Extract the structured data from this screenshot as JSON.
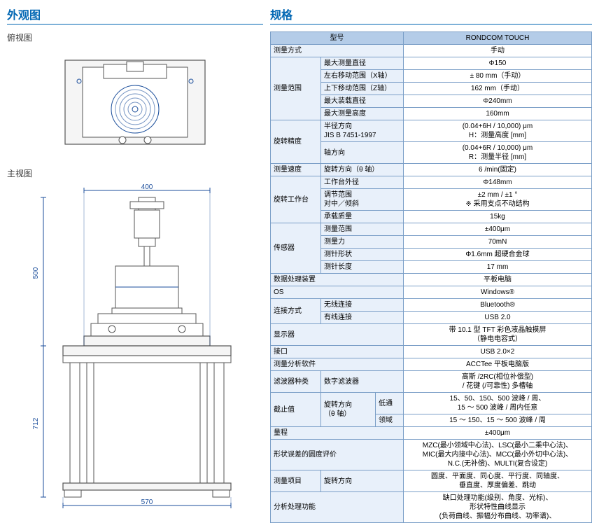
{
  "left": {
    "title": "外观图",
    "top_label": "俯视图",
    "front_label": "主视图",
    "dims": {
      "top_width": "400",
      "front_height_upper": "500",
      "front_height_lower": "712",
      "front_width": "570"
    }
  },
  "right": {
    "title": "规格",
    "header_model": "型号",
    "header_value": "RONDCOM TOUCH",
    "rows": [
      {
        "c1": "测量方式",
        "c2": "",
        "c3": "",
        "v": "手动",
        "rs1": 1,
        "cs1": 3
      },
      {
        "c1": "测量范围",
        "c2": "最大测量直径",
        "c3": "",
        "v": "Φ150",
        "rs1": 5,
        "cs2": 2
      },
      {
        "c1": "",
        "c2": "左右移动范围（X轴）",
        "c3": "",
        "v": "± 80 mm（手动）",
        "cs2": 2
      },
      {
        "c1": "",
        "c2": "上下移动范围（Z轴）",
        "c3": "",
        "v": "162 mm（手动）",
        "cs2": 2
      },
      {
        "c1": "",
        "c2": "最大装载直径",
        "c3": "",
        "v": "Φ240mm",
        "cs2": 2
      },
      {
        "c1": "",
        "c2": "最大测量高度",
        "c3": "",
        "v": "160mm",
        "cs2": 2
      },
      {
        "c1": "旋转精度",
        "c2": "半径方向\nJIS B 7451-1997",
        "c3": "",
        "v": "(0.04+6H / 10,000) μm\nH：测量高度 [mm]",
        "rs1": 2,
        "cs2": 2
      },
      {
        "c1": "",
        "c2": "轴方向",
        "c3": "",
        "v": "(0.04+6R / 10,000) μm\nR：测量半径 [mm]",
        "cs2": 2
      },
      {
        "c1": "测量速度",
        "c2": "旋转方向（θ 轴）",
        "c3": "",
        "v": "6 /min(固定)",
        "rs1": 1,
        "cs2": 2
      },
      {
        "c1": "旋转工作台",
        "c2": "工作台外径",
        "c3": "",
        "v": "Φ148mm",
        "rs1": 3,
        "cs2": 2
      },
      {
        "c1": "",
        "c2": "调节范围\n对中／倾斜",
        "c3": "",
        "v": "±2 mm / ±1 °\n※ 采用支点不动结构",
        "cs2": 2
      },
      {
        "c1": "",
        "c2": "承载质量",
        "c3": "",
        "v": "15kg",
        "cs2": 2
      },
      {
        "c1": "传感器",
        "c2": "测量范围",
        "c3": "",
        "v": "±400μm",
        "rs1": 4,
        "cs2": 2
      },
      {
        "c1": "",
        "c2": "测量力",
        "c3": "",
        "v": "70mN",
        "cs2": 2
      },
      {
        "c1": "",
        "c2": "测针形状",
        "c3": "",
        "v": "Φ1.6mm 超硬合金球",
        "cs2": 2
      },
      {
        "c1": "",
        "c2": "测针长度",
        "c3": "",
        "v": "17 mm",
        "cs2": 2
      },
      {
        "c1": "数据处理装置",
        "c2": "",
        "c3": "",
        "v": "平板电脑",
        "rs1": 1,
        "cs1": 3
      },
      {
        "c1": "OS",
        "c2": "",
        "c3": "",
        "v": "Windows®",
        "rs1": 1,
        "cs1": 3
      },
      {
        "c1": "连接方式",
        "c2": "无线连接",
        "c3": "",
        "v": "Bluetooth®",
        "rs1": 2,
        "cs2": 2
      },
      {
        "c1": "",
        "c2": "有线连接",
        "c3": "",
        "v": "USB 2.0",
        "cs2": 2
      },
      {
        "c1": "显示器",
        "c2": "",
        "c3": "",
        "v": "带 10.1 型 TFT 彩色液晶触摸屏\n（静电电容式）",
        "rs1": 1,
        "cs1": 3
      },
      {
        "c1": "接口",
        "c2": "",
        "c3": "",
        "v": "USB 2.0×2",
        "rs1": 1,
        "cs1": 3
      },
      {
        "c1": "测量分析软件",
        "c2": "",
        "c3": "",
        "v": "ACCTee 平板电脑版",
        "rs1": 1,
        "cs1": 3
      },
      {
        "c1": "滤波器种类",
        "c2": "数字滤波器",
        "c3": "",
        "v": "高斯 /2RC(相位补偿型)\n/ 花键 (/可靠性) 多槽轴",
        "rs1": 1,
        "cs2": 2
      },
      {
        "c1": "截止值",
        "c2": "旋转方向\n（θ 轴）",
        "c3": "低通",
        "v": "15、50、150、500 波峰 / 周、\n15 ～ 500 波峰 / 周内任意",
        "rs1": 2,
        "rs2": 2
      },
      {
        "c1": "",
        "c2": "",
        "c3": "领域",
        "v": "15 ～ 150、15 ～ 500 波峰 / 周"
      },
      {
        "c1": "量程",
        "c2": "",
        "c3": "",
        "v": "±400μm",
        "rs1": 1,
        "cs1": 3
      },
      {
        "c1": "形状误差的圆度评价",
        "c2": "",
        "c3": "",
        "v": "MZC(最小领域中心法)、LSC(最小二乘中心法)、\nMIC(最大内接中心法)、MCC(最小外切中心法)、\nN.C.(无补偿)、MULTI(复合设定)",
        "rs1": 1,
        "cs1": 3
      },
      {
        "c1": "测量项目",
        "c2": "旋转方向",
        "c3": "",
        "v": "圆度、平面度、同心度、平行度、同轴度、\n垂直度、厚度偏差、跳动",
        "rs1": 1,
        "cs2": 2
      },
      {
        "c1": "分析处理功能",
        "c2": "",
        "c3": "",
        "v": "缺口处理功能(级别、角度、光标)、\n形状特性曲线显示\n(负荷曲线、振幅分布曲线、功率谱)、",
        "rs1": 1,
        "cs1": 3
      }
    ]
  }
}
